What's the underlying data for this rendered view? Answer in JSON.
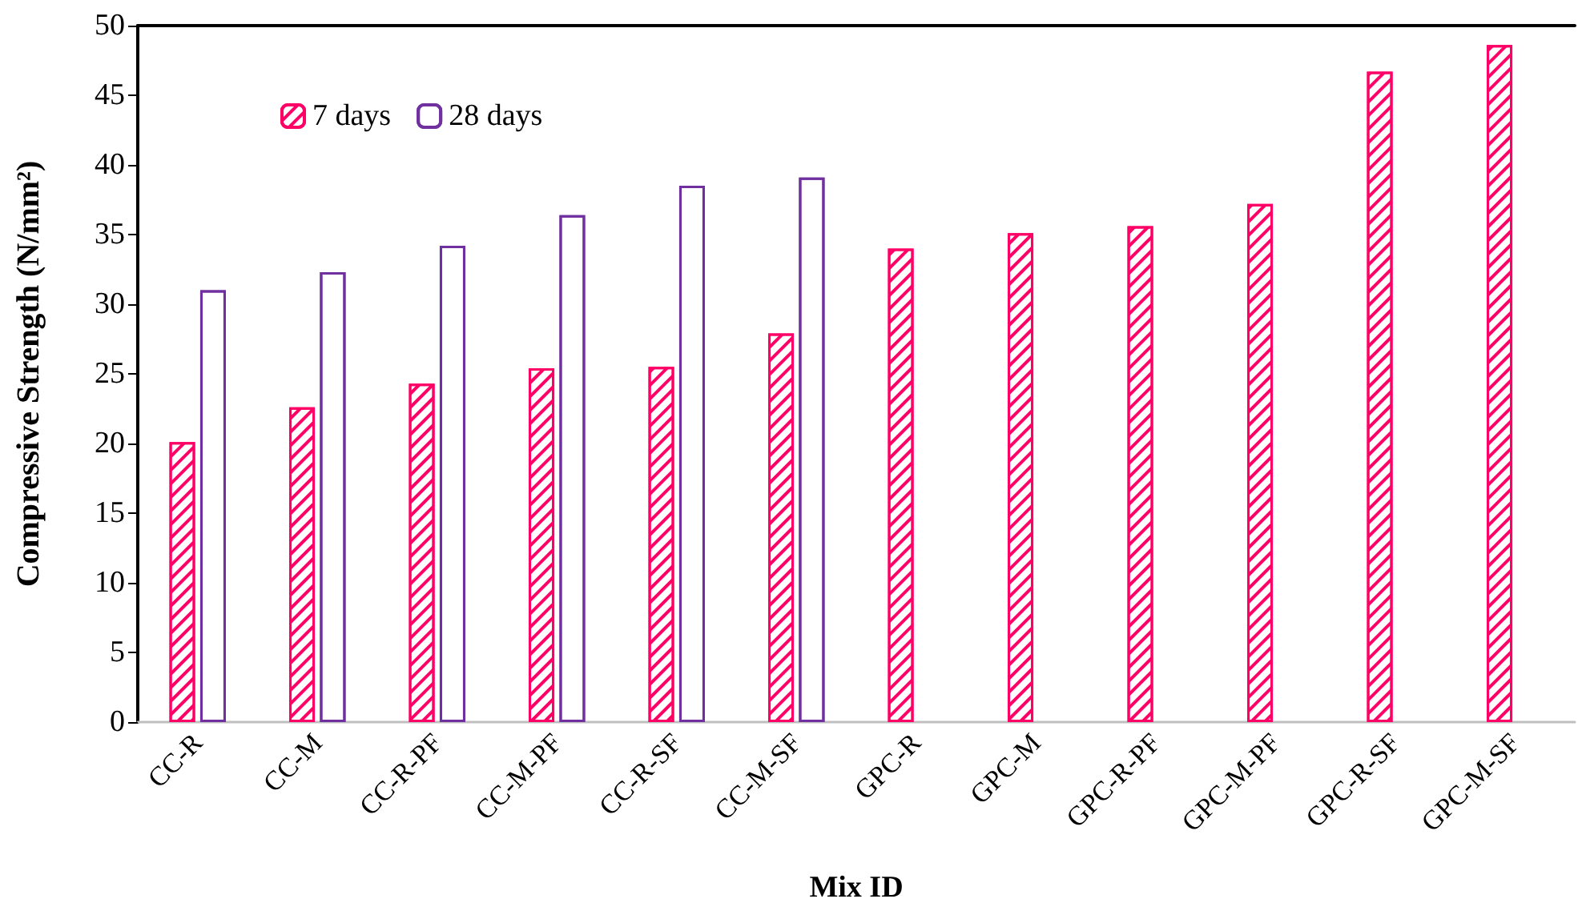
{
  "chart_data": {
    "type": "bar",
    "xlabel": "Mix ID",
    "ylabel": "Compressive Strength (N/mm²)",
    "categories": [
      "CC-R",
      "CC-M",
      "CC-R-PF",
      "CC-M-PF",
      "CC-R-SF",
      "CC-M-SF",
      "GPC-R",
      "GPC-M",
      "GPC-R-PF",
      "GPC-M-PF",
      "GPC-R-SF",
      "GPC-M-SF"
    ],
    "series": [
      {
        "name": "7 days",
        "color": "#ff0066",
        "values": [
          20.1,
          22.6,
          24.3,
          25.4,
          25.5,
          27.9,
          34.0,
          35.1,
          35.6,
          37.2,
          46.7,
          48.6
        ]
      },
      {
        "name": "28 days",
        "color": "#7030a0",
        "values": [
          31.0,
          32.3,
          34.2,
          36.4,
          38.5,
          39.1,
          null,
          null,
          null,
          null,
          null,
          null
        ]
      }
    ],
    "ylim": [
      0,
      50
    ],
    "yticks": [
      0,
      5,
      10,
      15,
      20,
      25,
      30,
      35,
      40,
      45,
      50
    ],
    "grid": false,
    "legend": "top left"
  }
}
